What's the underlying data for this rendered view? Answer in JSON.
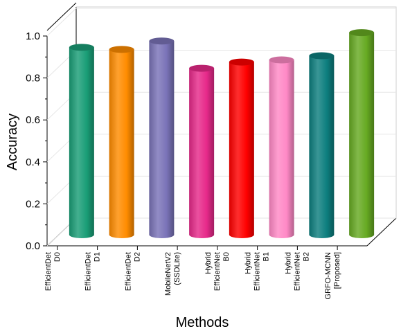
{
  "chart_data": {
    "type": "bar",
    "title": "",
    "xlabel": "Methods",
    "ylabel": "Accuracy",
    "ylim": [
      0,
      1.0
    ],
    "yticks": [
      "0.0",
      "0.2",
      "0.4",
      "0.6",
      "0.8",
      "1.0"
    ],
    "grid": true,
    "style": "3d-cylinder",
    "categories": [
      [
        "EfficientDet",
        "D0"
      ],
      [
        "EfficientDet",
        "D1"
      ],
      [
        "EfficientDet",
        "D2"
      ],
      [
        "MobileNetV2",
        "(SSDLite)"
      ],
      [
        "Hybrid",
        "EfficientNet",
        "B0"
      ],
      [
        "Hybrid",
        "EfficientNet",
        "B1"
      ],
      [
        "Hybrid",
        "EfficientNet",
        "B2"
      ],
      [
        "GRFO-MCNN",
        "[Proposed]"
      ]
    ],
    "values": [
      0.88,
      0.87,
      0.91,
      0.78,
      0.81,
      0.82,
      0.84,
      0.95
    ],
    "colors": [
      "#1a9e77",
      "#ff8c00",
      "#7a73b8",
      "#e7298a",
      "#ff0000",
      "#ff89c6",
      "#0d7f7f",
      "#66aa22"
    ]
  }
}
